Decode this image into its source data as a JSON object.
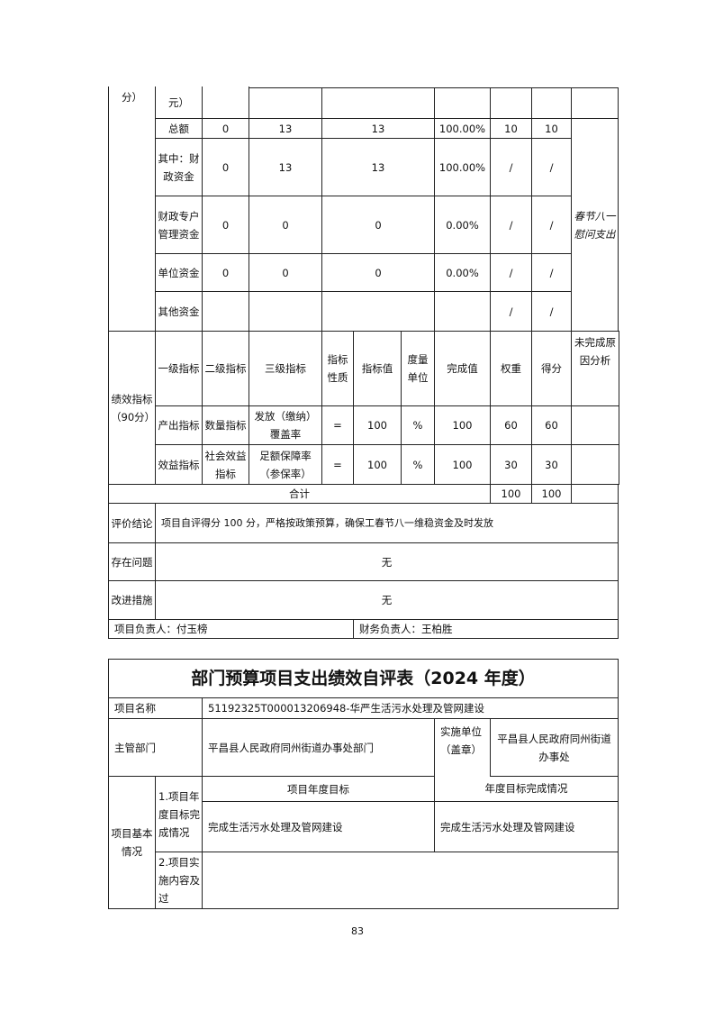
{
  "funds": {
    "prev_left": "分）",
    "prev_unit": "元）",
    "rows": [
      {
        "label": "总额",
        "a": "0",
        "b": "13",
        "c": "13",
        "rate": "100.00%",
        "weight": "10",
        "score": "10"
      },
      {
        "label": "其中：财政资金",
        "a": "0",
        "b": "13",
        "c": "13",
        "rate": "100.00%",
        "weight": "/",
        "score": "/"
      },
      {
        "label": "财政专户管理资金",
        "a": "0",
        "b": "0",
        "c": "0",
        "rate": "0.00%",
        "weight": "/",
        "score": "/"
      },
      {
        "label": "单位资金",
        "a": "0",
        "b": "0",
        "c": "0",
        "rate": "0.00%",
        "weight": "/",
        "score": "/"
      },
      {
        "label": "其他资金",
        "a": "",
        "b": "",
        "c": "",
        "rate": "",
        "weight": "/",
        "score": "/"
      }
    ],
    "remark": "春节八一慰问支出"
  },
  "perf": {
    "section": "绩效指标（90分）",
    "headers": [
      "一级指标",
      "二级指标",
      "三级指标",
      "指标性质",
      "指标值",
      "度量单位",
      "完成值",
      "权重",
      "得分",
      "未完成原因分析"
    ],
    "rows": [
      [
        "产出指标",
        "数量指标",
        "发放（缴纳）覆盖率",
        "=",
        "100",
        "%",
        "100",
        "60",
        "60",
        ""
      ],
      [
        "效益指标",
        "社会效益指标",
        "足额保障率（参保率）",
        "=",
        "100",
        "%",
        "100",
        "30",
        "30",
        ""
      ]
    ],
    "total_label": "合计",
    "total_weight": "100",
    "total_score": "100",
    "conclusion_label": "评价结论",
    "conclusion": "项目自评得分 100 分，严格按政策预算，确保工春节八一维稳资金及时发放",
    "problems_label": "存在问题",
    "problems": "无",
    "improve_label": "改进措施",
    "improve": "无",
    "project_lead": "项目负责人：付玉榜",
    "finance_lead": "财务负责人：王柏胜"
  },
  "form2": {
    "title": "部门预算项目支出绩效自评表（2024 年度）",
    "name_label": "项目名称",
    "name": "51192325T000013206948-华严生活污水处理及管网建设",
    "dept_label": "主管部门",
    "dept": "平昌县人民政府同州街道办事处部门",
    "impl_label": "实施单位（盖章）",
    "impl": "平昌县人民政府同州街道办事处",
    "basic_label": "项目基本情况",
    "item1_label": "1.项目年度目标完成情况",
    "goal_header": "项目年度目标",
    "done_header": "年度目标完成情况",
    "goal": "完成生活污水处理及管网建设",
    "done": "完成生活污水处理及管网建设",
    "item2_label": "2.项目实施内容及过"
  },
  "page_number": "83"
}
